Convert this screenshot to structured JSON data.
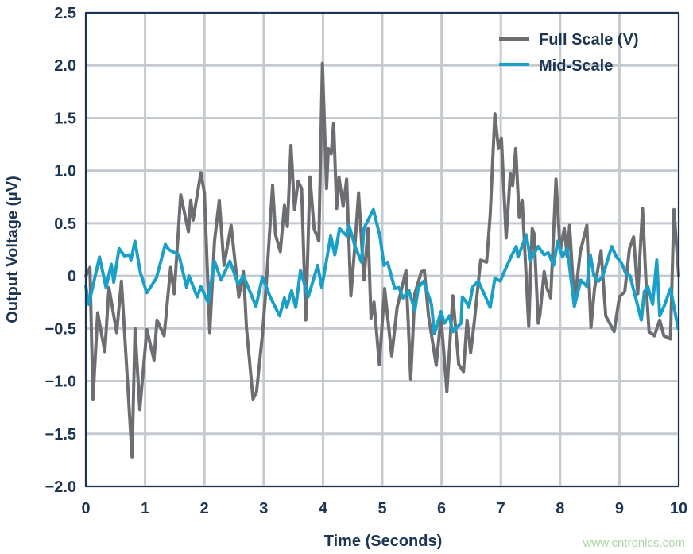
{
  "chart_data": {
    "type": "line",
    "title": "",
    "xlabel": "Time (Seconds)",
    "ylabel": "Output Voltage (µV)",
    "xlim": [
      0,
      10
    ],
    "ylim": [
      -2.0,
      2.5
    ],
    "x_ticks": [
      0,
      1,
      2,
      3,
      4,
      5,
      6,
      7,
      8,
      9,
      10
    ],
    "x_tick_labels": [
      "0",
      "1",
      "2",
      "3",
      "4",
      "5",
      "6",
      "7",
      "8",
      "9",
      "10"
    ],
    "y_ticks": [
      2.5,
      2.0,
      1.5,
      1.0,
      0.5,
      0,
      -0.5,
      -1.0,
      -1.5,
      -2.0
    ],
    "y_tick_labels": [
      "2.5",
      "2.0",
      "1.5",
      "1.0",
      "0.5",
      "0",
      "−0.5",
      "−1.0",
      "−1.5",
      "−2.0"
    ],
    "grid": true,
    "legend_position": "top-right",
    "series": [
      {
        "name": "Full Scale (V)",
        "color": "#6d6e71",
        "x": [
          0,
          0.07,
          0.12,
          0.2,
          0.32,
          0.39,
          0.52,
          0.6,
          0.78,
          0.83,
          0.91,
          1.03,
          1.15,
          1.2,
          1.32,
          1.43,
          1.49,
          1.6,
          1.73,
          1.77,
          1.81,
          1.94,
          2.0,
          2.09,
          2.17,
          2.25,
          2.33,
          2.45,
          2.58,
          2.66,
          2.71,
          2.82,
          2.88,
          2.98,
          3.04,
          3.15,
          3.2,
          3.28,
          3.35,
          3.4,
          3.46,
          3.52,
          3.58,
          3.64,
          3.71,
          3.78,
          3.85,
          3.93,
          3.99,
          4.06,
          4.09,
          4.14,
          4.18,
          4.23,
          4.27,
          4.34,
          4.4,
          4.47,
          4.54,
          4.6,
          4.69,
          4.76,
          4.81,
          4.86,
          4.95,
          5.04,
          5.16,
          5.25,
          5.4,
          5.48,
          5.55,
          5.66,
          5.71,
          5.78,
          5.91,
          5.99,
          6.09,
          6.19,
          6.29,
          6.37,
          6.43,
          6.49,
          6.55,
          6.66,
          6.76,
          6.82,
          6.9,
          6.96,
          7.01,
          7.09,
          7.16,
          7.2,
          7.25,
          7.31,
          7.36,
          7.47,
          7.53,
          7.56,
          7.63,
          7.66,
          7.73,
          7.78,
          7.84,
          7.93,
          8.0,
          8.07,
          8.12,
          8.16,
          8.24,
          8.34,
          8.45,
          8.52,
          8.58,
          8.69,
          8.77,
          8.91,
          9.0,
          9.09,
          9.17,
          9.24,
          9.31,
          9.39,
          9.45,
          9.5,
          9.59,
          9.68,
          9.75,
          9.86,
          9.92,
          10.0
        ],
        "y": [
          0.0,
          0.08,
          -1.17,
          -0.35,
          -0.72,
          -0.11,
          -0.54,
          -0.05,
          -1.72,
          -0.5,
          -1.27,
          -0.51,
          -0.8,
          -0.42,
          -0.57,
          0.08,
          -0.17,
          0.77,
          0.42,
          0.72,
          0.53,
          0.98,
          0.79,
          -0.54,
          0.33,
          0.72,
          0.1,
          0.48,
          -0.2,
          0.04,
          -0.5,
          -1.17,
          -1.1,
          -0.55,
          -0.11,
          0.86,
          0.39,
          0.23,
          0.67,
          0.47,
          1.24,
          0.63,
          0.9,
          0.83,
          -0.42,
          0.94,
          0.45,
          0.33,
          2.02,
          0.83,
          1.21,
          1.16,
          1.45,
          0.64,
          0.94,
          0.66,
          0.92,
          -0.19,
          0.3,
          0.79,
          -0.04,
          0.45,
          -0.4,
          -0.25,
          -0.84,
          -0.12,
          -0.76,
          -0.3,
          0.05,
          -0.98,
          -0.17,
          0.04,
          0.05,
          -0.38,
          -0.85,
          -0.39,
          -1.1,
          -0.19,
          -0.84,
          -0.91,
          -0.42,
          -0.73,
          -0.45,
          0.15,
          0.13,
          0.58,
          1.54,
          1.21,
          1.31,
          0.36,
          0.97,
          0.86,
          1.21,
          0.56,
          0.72,
          -0.48,
          0.45,
          0.4,
          -0.45,
          -0.37,
          0.04,
          -0.12,
          -0.21,
          0.92,
          0.23,
          0.45,
          0.18,
          0.48,
          -0.27,
          0.23,
          0.48,
          -0.49,
          -0.12,
          0.24,
          -0.38,
          -0.53,
          -0.2,
          -0.15,
          0.26,
          0.37,
          -0.17,
          0.64,
          -0.08,
          -0.53,
          -0.57,
          -0.42,
          -0.57,
          -0.6,
          0.63,
          0.0
        ]
      },
      {
        "name": "Mid-Scale",
        "color": "#1aa0c8",
        "x": [
          0,
          0.05,
          0.23,
          0.34,
          0.43,
          0.47,
          0.56,
          0.65,
          0.74,
          0.76,
          0.83,
          0.92,
          1.03,
          1.19,
          1.34,
          1.4,
          1.57,
          1.7,
          1.74,
          1.88,
          1.94,
          2.06,
          2.17,
          2.28,
          2.43,
          2.57,
          2.66,
          2.87,
          2.98,
          3.11,
          3.27,
          3.35,
          3.39,
          3.47,
          3.54,
          3.62,
          3.75,
          3.91,
          3.98,
          4.13,
          4.2,
          4.28,
          4.4,
          4.44,
          4.54,
          4.65,
          4.69,
          4.85,
          4.96,
          5.03,
          5.09,
          5.21,
          5.28,
          5.35,
          5.45,
          5.55,
          5.61,
          5.7,
          5.83,
          5.88,
          5.99,
          6.05,
          6.13,
          6.19,
          6.33,
          6.35,
          6.42,
          6.46,
          6.53,
          6.62,
          6.82,
          6.9,
          6.99,
          7.09,
          7.17,
          7.26,
          7.29,
          7.43,
          7.5,
          7.63,
          7.73,
          7.8,
          7.89,
          7.96,
          8.04,
          8.12,
          8.24,
          8.35,
          8.45,
          8.51,
          8.57,
          8.65,
          8.72,
          8.87,
          8.95,
          9.03,
          9.11,
          9.18,
          9.37,
          9.42,
          9.48,
          9.56,
          9.63,
          9.68,
          9.76,
          9.86,
          9.99
        ],
        "y": [
          -0.1,
          -0.27,
          0.18,
          -0.11,
          0.11,
          -0.06,
          0.26,
          0.19,
          0.2,
          0.15,
          0.33,
          0.03,
          -0.16,
          -0.02,
          0.3,
          0.25,
          0.2,
          -0.11,
          0.0,
          -0.2,
          -0.1,
          -0.25,
          0.14,
          -0.04,
          0.14,
          -0.08,
          0.0,
          -0.29,
          -0.01,
          -0.2,
          -0.38,
          -0.21,
          -0.3,
          -0.14,
          -0.3,
          0.05,
          -0.2,
          0.1,
          -0.11,
          0.38,
          0.2,
          0.45,
          0.38,
          0.48,
          0.28,
          0.13,
          0.45,
          0.63,
          0.38,
          0.1,
          0.13,
          -0.12,
          -0.11,
          -0.21,
          -0.14,
          -0.33,
          -0.11,
          -0.05,
          -0.27,
          -0.55,
          -0.34,
          -0.45,
          -0.38,
          -0.53,
          -0.45,
          -0.2,
          -0.25,
          -0.3,
          -0.1,
          -0.05,
          -0.3,
          -0.02,
          -0.05,
          0.08,
          0.18,
          0.28,
          0.18,
          0.39,
          0.15,
          0.28,
          0.2,
          0.22,
          0.1,
          0.33,
          0.18,
          0.26,
          -0.29,
          -0.04,
          -0.1,
          0.2,
          0.0,
          -0.05,
          0.0,
          0.28,
          0.18,
          0.13,
          0.02,
          0.0,
          -0.42,
          -0.15,
          -0.1,
          -0.27,
          0.15,
          -0.38,
          -0.28,
          -0.12,
          -0.5
        ]
      }
    ]
  },
  "watermark": "www.cntronics.com"
}
